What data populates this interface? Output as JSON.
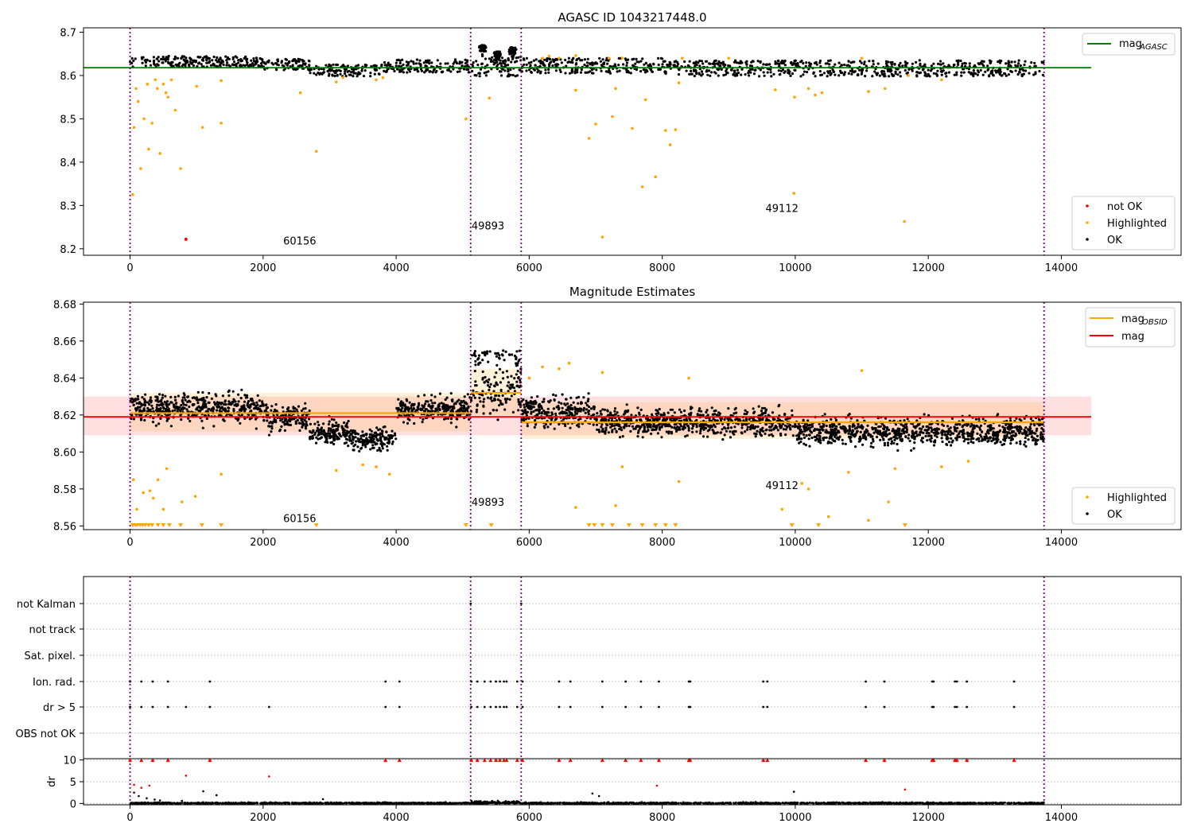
{
  "chart_data": [
    {
      "type": "scatter",
      "title": "AGASC ID 1043217448.0",
      "xlim": [
        -700,
        15800
      ],
      "ylim": [
        8.185,
        8.71
      ],
      "xticks": [
        0,
        2000,
        4000,
        6000,
        8000,
        10000,
        12000,
        14000
      ],
      "yticks": [
        8.2,
        8.3,
        8.4,
        8.5,
        8.6,
        8.7
      ],
      "obs_boundaries": [
        0,
        5120,
        5880,
        13740
      ],
      "obs_labels": [
        {
          "text": "60156",
          "x": 2550,
          "y": 8.21
        },
        {
          "text": "49893",
          "x": 5380,
          "y": 8.245
        },
        {
          "text": "49112",
          "x": 9800,
          "y": 8.285
        }
      ],
      "reference_line": {
        "name": "mag_AGASC",
        "label_main": "mag",
        "label_sub": "AGASC",
        "value": 8.618,
        "x_range": [
          -700,
          14450
        ],
        "color": "#008000"
      },
      "ok_band": {
        "x_range": [
          0,
          13740
        ],
        "segments": [
          {
            "x0": 0,
            "x1": 2000,
            "y0": 8.62,
            "y1": 8.645
          },
          {
            "x0": 2000,
            "x1": 2700,
            "y0": 8.612,
            "y1": 8.638
          },
          {
            "x0": 2700,
            "x1": 3800,
            "y0": 8.598,
            "y1": 8.625
          },
          {
            "x0": 3800,
            "x1": 5120,
            "y0": 8.607,
            "y1": 8.637
          },
          {
            "x0": 5120,
            "x1": 5880,
            "y0": 8.598,
            "y1": 8.645
          },
          {
            "x0": 5880,
            "x1": 8000,
            "y0": 8.605,
            "y1": 8.64
          },
          {
            "x0": 8000,
            "x1": 13740,
            "y0": 8.598,
            "y1": 8.635
          }
        ]
      },
      "bumps": [
        {
          "x": 5300,
          "y": 8.67
        },
        {
          "x": 5520,
          "y": 8.655
        },
        {
          "x": 5750,
          "y": 8.665
        }
      ],
      "highlighted": [
        [
          40,
          8.325
        ],
        [
          60,
          8.48
        ],
        [
          90,
          8.57
        ],
        [
          120,
          8.54
        ],
        [
          160,
          8.385
        ],
        [
          210,
          8.5
        ],
        [
          260,
          8.58
        ],
        [
          280,
          8.43
        ],
        [
          330,
          8.49
        ],
        [
          380,
          8.59
        ],
        [
          410,
          8.57
        ],
        [
          450,
          8.42
        ],
        [
          500,
          8.58
        ],
        [
          540,
          8.56
        ],
        [
          570,
          8.55
        ],
        [
          620,
          8.59
        ],
        [
          680,
          8.52
        ],
        [
          760,
          8.385
        ],
        [
          1000,
          8.575
        ],
        [
          1090,
          8.48
        ],
        [
          1370,
          8.49
        ],
        [
          1370,
          8.588
        ],
        [
          2560,
          8.56
        ],
        [
          2800,
          8.425
        ],
        [
          3100,
          8.585
        ],
        [
          3200,
          8.595
        ],
        [
          3700,
          8.59
        ],
        [
          3800,
          8.595
        ],
        [
          5050,
          8.5
        ],
        [
          5400,
          8.548
        ],
        [
          6200,
          8.64
        ],
        [
          6300,
          8.645
        ],
        [
          6450,
          8.64
        ],
        [
          6700,
          8.646
        ],
        [
          6700,
          8.566
        ],
        [
          6900,
          8.455
        ],
        [
          7000,
          8.488
        ],
        [
          7100,
          8.227
        ],
        [
          7200,
          8.64
        ],
        [
          7250,
          8.505
        ],
        [
          7300,
          8.57
        ],
        [
          7400,
          8.64
        ],
        [
          7550,
          8.478
        ],
        [
          7700,
          8.343
        ],
        [
          7750,
          8.544
        ],
        [
          7900,
          8.366
        ],
        [
          8050,
          8.473
        ],
        [
          8120,
          8.44
        ],
        [
          8200,
          8.475
        ],
        [
          8250,
          8.583
        ],
        [
          8300,
          8.64
        ],
        [
          9000,
          8.64
        ],
        [
          9700,
          8.567
        ],
        [
          9980,
          8.328
        ],
        [
          9990,
          8.55
        ],
        [
          10200,
          8.57
        ],
        [
          10300,
          8.555
        ],
        [
          10400,
          8.56
        ],
        [
          11000,
          8.64
        ],
        [
          11100,
          8.563
        ],
        [
          11350,
          8.57
        ],
        [
          11640,
          8.263
        ],
        [
          11700,
          8.6
        ],
        [
          12200,
          8.59
        ]
      ],
      "not_ok": [
        [
          840,
          8.222
        ]
      ],
      "legend_top": [
        {
          "label": "mag",
          "sub": "AGASC",
          "color": "#008000"
        }
      ],
      "legend_bottom": [
        {
          "label": "not OK",
          "color": "#ff0000"
        },
        {
          "label": "Highlighted",
          "color": "#ffa500"
        },
        {
          "label": "OK",
          "color": "#000000"
        }
      ]
    },
    {
      "type": "scatter",
      "title": "Magnitude Estimates",
      "xlim": [
        -700,
        15800
      ],
      "ylim": [
        8.558,
        8.681
      ],
      "xticks": [
        0,
        2000,
        4000,
        6000,
        8000,
        10000,
        12000,
        14000
      ],
      "yticks": [
        8.56,
        8.58,
        8.6,
        8.62,
        8.64,
        8.66,
        8.68
      ],
      "obs_boundaries": [
        0,
        5120,
        5880,
        13740
      ],
      "obs_labels": [
        {
          "text": "60156",
          "x": 2550,
          "y": 8.562
        },
        {
          "text": "49893",
          "x": 5380,
          "y": 8.571
        },
        {
          "text": "49112",
          "x": 9800,
          "y": 8.58
        }
      ],
      "mag_band": {
        "x_range": [
          -700,
          14450
        ],
        "y0": 8.609,
        "y1": 8.63,
        "color": "#ff0000",
        "opacity": 0.12
      },
      "mag_line": {
        "name": "mag",
        "value": 8.619,
        "color": "#ff0000"
      },
      "obsid_mags": [
        {
          "x0": 0,
          "x1": 5120,
          "value": 8.621,
          "band": [
            8.611,
            8.632
          ]
        },
        {
          "x0": 5120,
          "x1": 5880,
          "value": 8.632,
          "band": [
            8.62,
            8.645
          ]
        },
        {
          "x0": 5880,
          "x1": 13740,
          "value": 8.616,
          "band": [
            8.607,
            8.627
          ]
        }
      ],
      "ok_segments": [
        {
          "x0": 0,
          "x1": 2000,
          "mean": 8.624,
          "spread": 0.0075
        },
        {
          "x0": 2000,
          "x1": 2700,
          "mean": 8.619,
          "spread": 0.0065
        },
        {
          "x0": 2700,
          "x1": 3300,
          "mean": 8.61,
          "spread": 0.006
        },
        {
          "x0": 3300,
          "x1": 4000,
          "mean": 8.607,
          "spread": 0.006
        },
        {
          "x0": 4000,
          "x1": 5120,
          "mean": 8.623,
          "spread": 0.0065
        },
        {
          "x0": 5120,
          "x1": 5880,
          "mean": 8.632,
          "spread": 0.012
        },
        {
          "x0": 5880,
          "x1": 7000,
          "mean": 8.622,
          "spread": 0.0075
        },
        {
          "x0": 7000,
          "x1": 10000,
          "mean": 8.616,
          "spread": 0.007
        },
        {
          "x0": 10000,
          "x1": 13740,
          "mean": 8.611,
          "spread": 0.007
        }
      ],
      "highlighted": [
        [
          50,
          8.585
        ],
        [
          100,
          8.569
        ],
        [
          200,
          8.578
        ],
        [
          300,
          8.579
        ],
        [
          350,
          8.575
        ],
        [
          420,
          8.585
        ],
        [
          500,
          8.569
        ],
        [
          550,
          8.591
        ],
        [
          780,
          8.573
        ],
        [
          980,
          8.576
        ],
        [
          1370,
          8.588
        ],
        [
          3100,
          8.59
        ],
        [
          3500,
          8.593
        ],
        [
          3700,
          8.592
        ],
        [
          3900,
          8.588
        ],
        [
          6000,
          8.64
        ],
        [
          6200,
          8.646
        ],
        [
          6450,
          8.645
        ],
        [
          6600,
          8.648
        ],
        [
          6700,
          8.57
        ],
        [
          7100,
          8.643
        ],
        [
          7300,
          8.571
        ],
        [
          7400,
          8.592
        ],
        [
          8250,
          8.584
        ],
        [
          8400,
          8.64
        ],
        [
          9800,
          8.569
        ],
        [
          10100,
          8.583
        ],
        [
          10200,
          8.58
        ],
        [
          10500,
          8.565
        ],
        [
          10800,
          8.589
        ],
        [
          11000,
          8.644
        ],
        [
          11100,
          8.563
        ],
        [
          11400,
          8.573
        ],
        [
          11500,
          8.591
        ],
        [
          12200,
          8.592
        ],
        [
          12600,
          8.595
        ]
      ],
      "off_scale_x": [
        40,
        80,
        110,
        150,
        190,
        230,
        280,
        330,
        420,
        500,
        590,
        760,
        1080,
        1370,
        2800,
        5050,
        5430,
        6900,
        6980,
        7100,
        7250,
        7500,
        7700,
        7900,
        8050,
        8200,
        9950,
        10350,
        11650
      ],
      "legend_top": [
        {
          "label": "mag",
          "sub": "OBSID",
          "color": "#ffa500"
        },
        {
          "label": "mag",
          "sub": "",
          "color": "#ff0000"
        }
      ],
      "legend_bottom": [
        {
          "label": "Highlighted",
          "color": "#ffa500"
        },
        {
          "label": "OK",
          "color": "#000000"
        }
      ]
    },
    {
      "type": "scatter",
      "title": "",
      "xlim": [
        -700,
        15800
      ],
      "categories": [
        "not Kalman",
        "not track",
        "Sat. pixel.",
        "Ion. rad.",
        "dr > 5",
        "OBS not OK"
      ],
      "flag_boundaries_top": [
        5120,
        5880
      ],
      "ion_rad_x": [
        0,
        170,
        340,
        570,
        1200,
        3840,
        4050,
        5130,
        5220,
        5330,
        5420,
        5500,
        5560,
        5620,
        5660,
        5820,
        5900,
        6450,
        6620,
        7100,
        7450,
        7680,
        7950,
        8400,
        8420,
        9520,
        9580,
        11060,
        11340,
        12060,
        12080,
        12400,
        12430,
        12580,
        13290
      ],
      "dr5_x": [
        0,
        170,
        340,
        570,
        840,
        1200,
        2090,
        3840,
        4050,
        5130,
        5220,
        5330,
        5420,
        5500,
        5560,
        5620,
        5660,
        5820,
        5900,
        6450,
        6620,
        7100,
        7450,
        7680,
        7950,
        8400,
        8420,
        9520,
        9580,
        11060,
        11340,
        12060,
        12080,
        12400,
        12430,
        12580,
        13290
      ]
    },
    {
      "type": "scatter",
      "title": "",
      "ylabel": "dr",
      "xlim": [
        -700,
        15800
      ],
      "ylim": [
        -0.3,
        10.3
      ],
      "xticks": [
        0,
        2000,
        4000,
        6000,
        8000,
        10000,
        12000,
        14000
      ],
      "yticks": [
        0,
        5,
        10
      ],
      "capped_x": [
        0,
        170,
        340,
        570,
        1200,
        3840,
        4050,
        5130,
        5220,
        5330,
        5420,
        5500,
        5560,
        5620,
        5660,
        5820,
        5900,
        6450,
        6620,
        7100,
        7450,
        7680,
        7950,
        8400,
        8420,
        9520,
        9580,
        11060,
        11340,
        12060,
        12080,
        12400,
        12430,
        12580,
        13290
      ],
      "red_points": [
        [
          60,
          4.3
        ],
        [
          170,
          3.6
        ],
        [
          290,
          4.1
        ],
        [
          840,
          6.4
        ],
        [
          2090,
          6.2
        ],
        [
          7920,
          4.1
        ],
        [
          11650,
          3.2
        ]
      ],
      "black_points": [
        [
          60,
          2.5
        ],
        [
          130,
          1.7
        ],
        [
          250,
          1.2
        ],
        [
          370,
          0.9
        ],
        [
          450,
          0.7
        ],
        [
          780,
          0.6
        ],
        [
          1100,
          2.8
        ],
        [
          1300,
          1.9
        ],
        [
          2900,
          1.0
        ],
        [
          6950,
          2.3
        ],
        [
          7050,
          1.7
        ],
        [
          9980,
          2.7
        ]
      ]
    }
  ]
}
